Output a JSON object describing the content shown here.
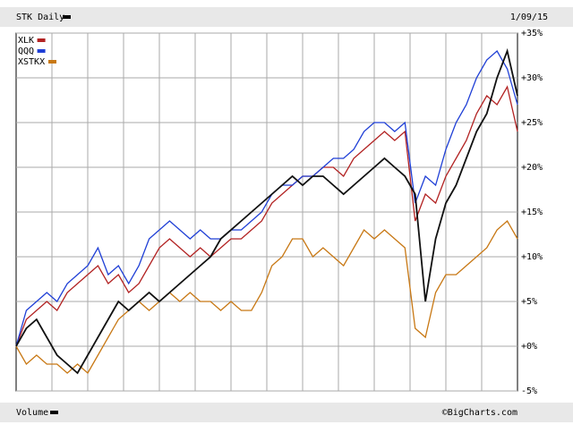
{
  "chart_data": {
    "type": "line",
    "title": "STK Daily",
    "date": "1/09/15",
    "volume_label": "Volume",
    "source": "©BigCharts.com",
    "categories": [
      null,
      null,
      null,
      null,
      null,
      null,
      null,
      null,
      null,
      null,
      null,
      null,
      null,
      null,
      null,
      null,
      null,
      null,
      null,
      null,
      null,
      null,
      null,
      null,
      null,
      null,
      null,
      null,
      null,
      null,
      null,
      null,
      null,
      null,
      null,
      null,
      null,
      null,
      null,
      null,
      null,
      null,
      null,
      null,
      null,
      null,
      null,
      null,
      null,
      null
    ],
    "main_series": {
      "color": "#111111",
      "values": [
        0,
        2,
        3,
        1,
        -1,
        -2,
        -3,
        -1,
        1,
        3,
        5,
        4,
        5,
        6,
        5,
        6,
        7,
        8,
        9,
        10,
        12,
        13,
        14,
        15,
        16,
        17,
        18,
        19,
        18,
        19,
        19,
        18,
        17,
        18,
        19,
        20,
        21,
        20,
        19,
        17,
        5,
        12,
        16,
        18,
        21,
        24,
        26,
        30,
        33,
        28
      ]
    },
    "series": [
      {
        "name": "XLK",
        "color": "#b22222",
        "values": [
          0,
          3,
          4,
          5,
          4,
          6,
          7,
          8,
          9,
          7,
          8,
          6,
          7,
          9,
          11,
          12,
          11,
          10,
          11,
          10,
          11,
          12,
          12,
          13,
          14,
          16,
          17,
          18,
          19,
          19,
          20,
          20,
          19,
          21,
          22,
          23,
          24,
          23,
          24,
          14,
          17,
          16,
          19,
          21,
          23,
          26,
          28,
          27,
          29,
          24
        ]
      },
      {
        "name": "QQQ",
        "color": "#1f3fd6",
        "values": [
          0,
          4,
          5,
          6,
          5,
          7,
          8,
          9,
          11,
          8,
          9,
          7,
          9,
          12,
          13,
          14,
          13,
          12,
          13,
          12,
          12,
          13,
          13,
          14,
          15,
          17,
          18,
          18,
          19,
          19,
          20,
          21,
          21,
          22,
          24,
          25,
          25,
          24,
          25,
          16,
          19,
          18,
          22,
          25,
          27,
          30,
          32,
          33,
          31,
          27
        ]
      },
      {
        "name": "XSTKX",
        "color": "#c87814",
        "values": [
          0,
          -2,
          -1,
          -2,
          -2,
          -3,
          -2,
          -3,
          -1,
          1,
          3,
          4,
          5,
          4,
          5,
          6,
          5,
          6,
          5,
          5,
          4,
          5,
          4,
          4,
          6,
          9,
          10,
          12,
          12,
          10,
          11,
          10,
          9,
          11,
          13,
          12,
          13,
          12,
          11,
          2,
          1,
          6,
          8,
          8,
          9,
          10,
          11,
          13,
          14,
          12
        ]
      }
    ],
    "ylim": [
      -5,
      35
    ],
    "yticks": [
      {
        "value": -5,
        "label": "-5%"
      },
      {
        "value": 0,
        "label": "+0%"
      },
      {
        "value": 5,
        "label": "+5%"
      },
      {
        "value": 10,
        "label": "+10%"
      },
      {
        "value": 15,
        "label": "+15%"
      },
      {
        "value": 20,
        "label": "+20%"
      },
      {
        "value": 25,
        "label": "+25%"
      },
      {
        "value": 30,
        "label": "+30%"
      },
      {
        "value": 35,
        "label": "+35%"
      }
    ],
    "grid": true
  }
}
